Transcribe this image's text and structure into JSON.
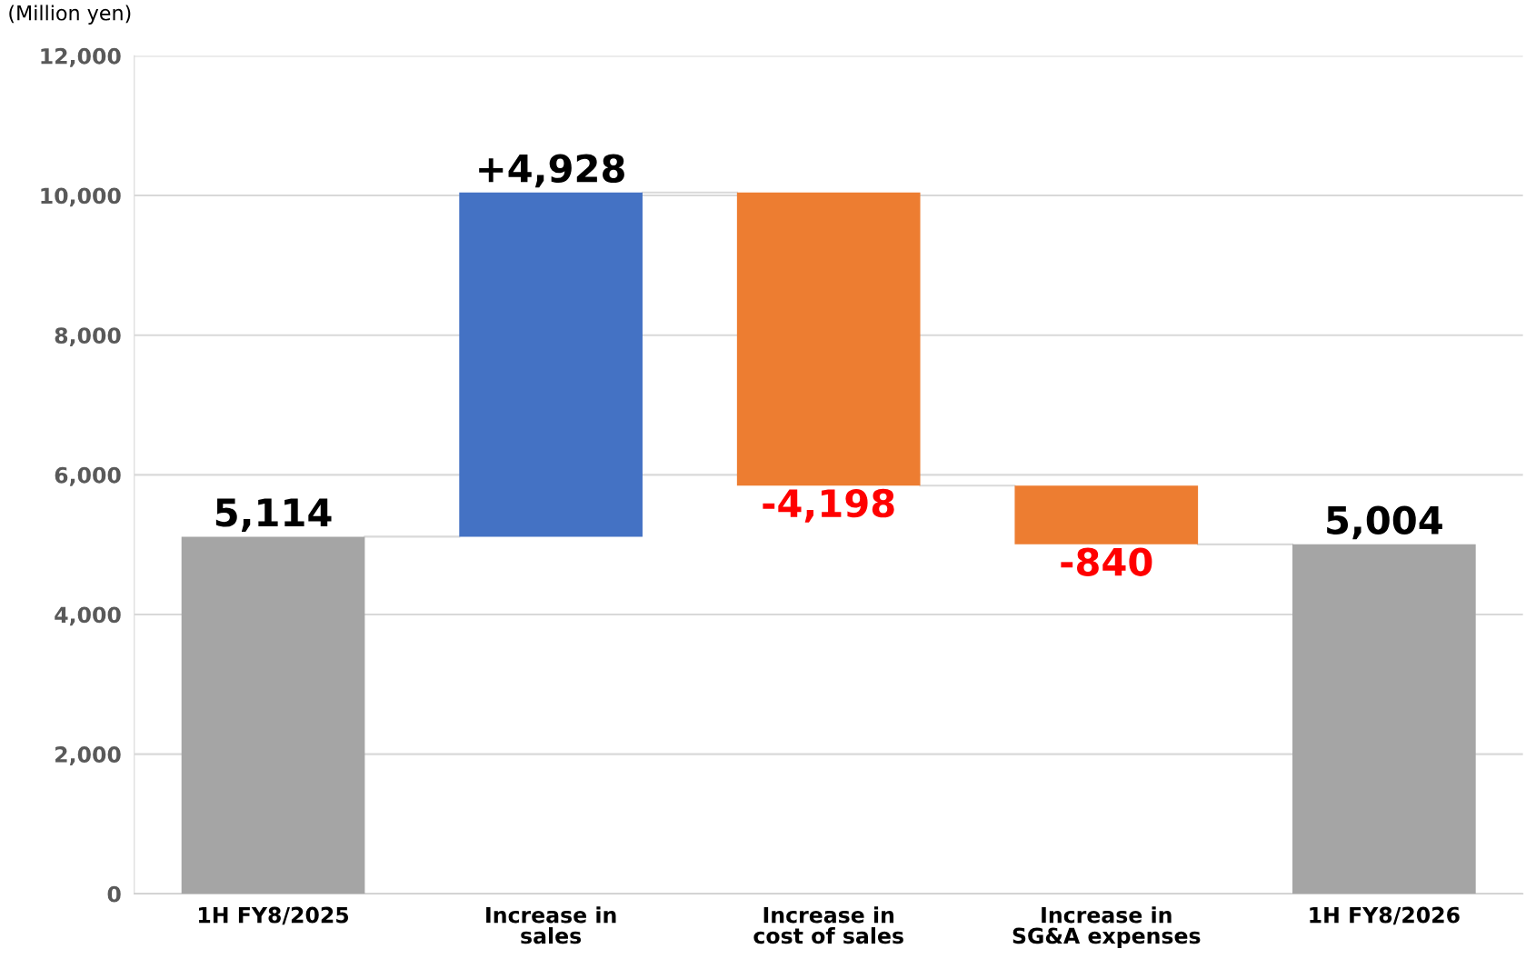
{
  "chart_data": {
    "type": "bar",
    "ylabel": "(Million yen)",
    "categories": [
      "1H FY8/2025",
      "Increase in\nsales",
      "Increase in\ncost of sales",
      "Increase in\nSG&A expenses",
      "1H FY8/2026"
    ],
    "values": [
      5114,
      4928,
      -4198,
      -840,
      5004
    ],
    "base": [
      0,
      5114,
      10042,
      5844,
      0
    ],
    "colors": [
      "#a5a5a5",
      "#4472c4",
      "#ed7d31",
      "#ed7d31",
      "#a5a5a5"
    ],
    "value_labels": [
      "5,114",
      "+4,928",
      "-4,198",
      "-840",
      "5,004"
    ],
    "ylim": [
      0,
      12000
    ],
    "yticks": [
      0,
      {
        "value": 2000,
        "label": "2,000"
      },
      {
        "value": 4000,
        "label": "4,000"
      },
      {
        "value": 6000,
        "label": "6,000"
      },
      {
        "value": 8000,
        "label": "8,000"
      },
      {
        "value": 10000,
        "label": "10,000"
      },
      {
        "value": 12000,
        "label": "12,000"
      }
    ],
    "grid": "y",
    "legend": false
  }
}
